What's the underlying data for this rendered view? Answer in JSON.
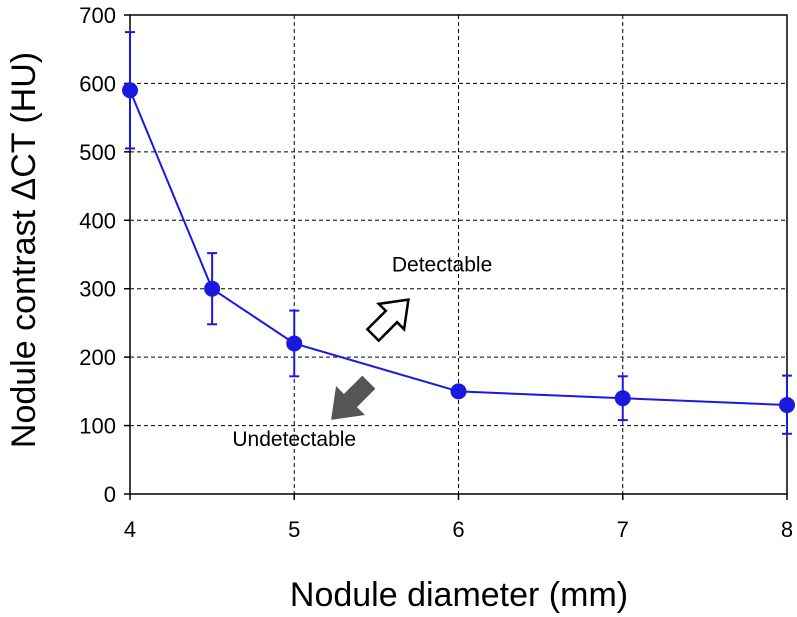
{
  "chart_data": {
    "type": "line",
    "xlabel": "Nodule diameter (mm)",
    "ylabel": "Nodule contrast ΔCT (HU)",
    "xlim": [
      4,
      8
    ],
    "ylim": [
      0,
      700
    ],
    "xticks": [
      4,
      5,
      6,
      7,
      8
    ],
    "yticks": [
      0,
      100,
      200,
      300,
      400,
      500,
      600,
      700
    ],
    "grid": true,
    "series": [
      {
        "color": "#1a1adf",
        "x": [
          4,
          4.5,
          5,
          6,
          7,
          8
        ],
        "y": [
          590,
          300,
          220,
          150,
          140,
          130
        ],
        "error_low": [
          505,
          248,
          172,
          150,
          108,
          88
        ],
        "error_high": [
          675,
          352,
          268,
          150,
          172,
          173
        ]
      }
    ],
    "annotations": [
      {
        "text": "Detectable",
        "x": 5.9,
        "y": 325
      },
      {
        "text": "Undetectable",
        "x": 5.0,
        "y": 70
      }
    ],
    "arrows": [
      {
        "name": "detectable-arrow",
        "direction": "up-right",
        "fill": "#ffffff",
        "stroke": "#000000"
      },
      {
        "name": "undetectable-arrow",
        "direction": "down-left",
        "fill": "#555555",
        "stroke": "#555555"
      }
    ]
  }
}
